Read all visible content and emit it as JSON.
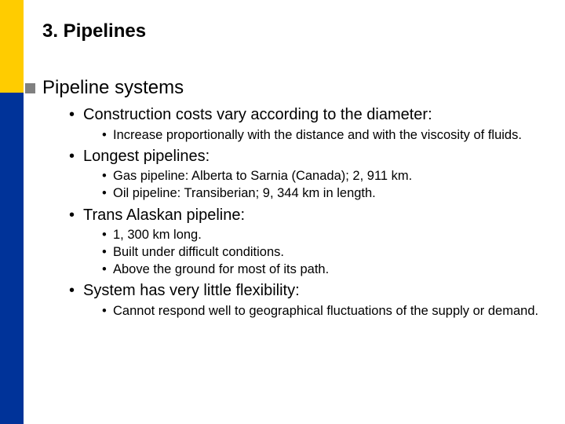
{
  "title": "3. Pipelines",
  "section": "Pipeline systems",
  "colors": {
    "accent_top": "#ffcc00",
    "accent_bottom": "#003399",
    "square_bullet": "#808080",
    "text": "#000000",
    "background": "#ffffff"
  },
  "typography": {
    "title_fontsize_pt": 18,
    "section_fontsize_pt": 18,
    "lvl1_fontsize_pt": 15,
    "lvl2_fontsize_pt": 12,
    "font_family": "Arial"
  },
  "items": [
    {
      "text": "Construction costs vary according to the diameter:",
      "sub": [
        "Increase proportionally with the distance and with the viscosity of fluids."
      ]
    },
    {
      "text": "Longest pipelines:",
      "sub": [
        "Gas pipeline: Alberta to Sarnia (Canada); 2, 911 km.",
        "Oil pipeline: Transiberian; 9, 344 km in length."
      ]
    },
    {
      "text": "Trans Alaskan pipeline:",
      "sub": [
        "1, 300 km long.",
        "Built under difficult conditions.",
        "Above the ground for most of its path."
      ]
    },
    {
      "text": "System has very little flexibility:",
      "sub": [
        "Cannot respond well to geographical fluctuations of the supply or demand."
      ]
    }
  ]
}
